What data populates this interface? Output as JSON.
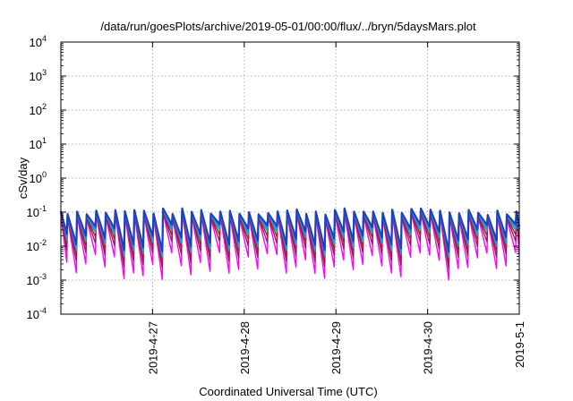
{
  "chart_data": {
    "type": "line",
    "title": "/data/run/goesPlots/archive/2019-05-01/00:00/flux/../bryn/5daysMars.plot",
    "xlabel": "Coordinated Universal Time (UTC)",
    "ylabel": "cSv/day",
    "yscale": "log",
    "ylim": [
      0.0001,
      10000
    ],
    "y_ticks": [
      {
        "base": "10",
        "exp": "-4",
        "value": 0.0001
      },
      {
        "base": "10",
        "exp": "-3",
        "value": 0.001
      },
      {
        "base": "10",
        "exp": "-2",
        "value": 0.01
      },
      {
        "base": "10",
        "exp": "-1",
        "value": 0.1
      },
      {
        "base": "10",
        "exp": "0",
        "value": 1
      },
      {
        "base": "10",
        "exp": "1",
        "value": 10
      },
      {
        "base": "10",
        "exp": "2",
        "value": 100
      },
      {
        "base": "10",
        "exp": "3",
        "value": 1000
      },
      {
        "base": "10",
        "exp": "4",
        "value": 10000
      }
    ],
    "xlim": [
      "2019-04-26T00:00",
      "2019-05-01T00:00"
    ],
    "x_ticks": [
      "2019-4-27",
      "2019-4-28",
      "2019-4-29",
      "2019-4-30",
      "2019-5-1"
    ],
    "grid": true,
    "legend": "none",
    "series_colors": [
      "#ff00ff",
      "#8b2252",
      "#c0142c",
      "#00bb99",
      "#1e90ff",
      "#2040c0"
    ],
    "sawtooth": {
      "period_hours": 2.5,
      "upper_envelope_csv_per_day": [
        0.1,
        0.12
      ],
      "lower_envelope_csv_per_day": [
        0.0015,
        0.012
      ]
    }
  }
}
